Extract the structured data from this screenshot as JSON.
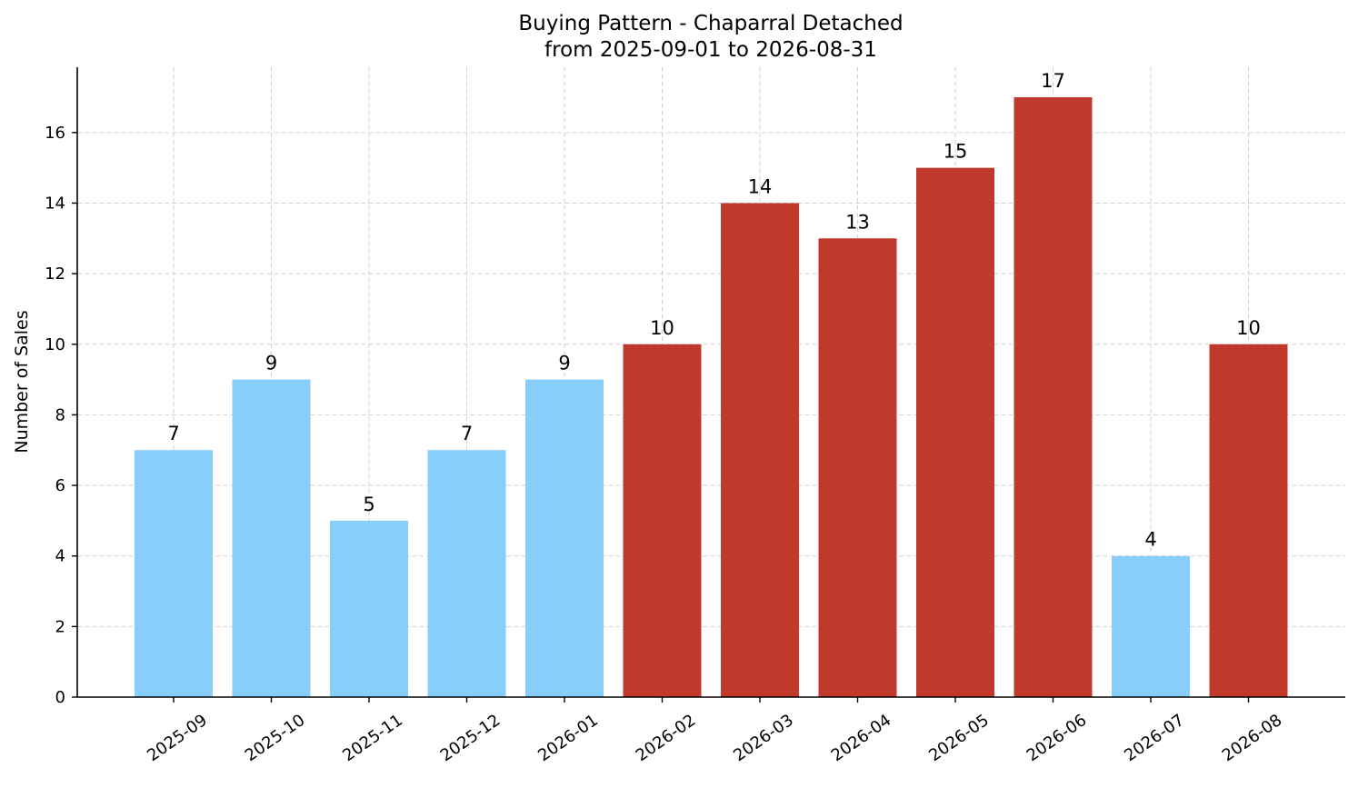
{
  "chart_data": {
    "type": "bar",
    "title": "Buying Pattern - Chaparral Detached",
    "subtitle": "from 2025-09-01 to 2026-08-31",
    "xlabel": "",
    "ylabel": "Number of Sales",
    "categories": [
      "2025-09",
      "2025-10",
      "2025-11",
      "2025-12",
      "2026-01",
      "2026-02",
      "2026-03",
      "2026-04",
      "2026-05",
      "2026-06",
      "2026-07",
      "2026-08"
    ],
    "values": [
      7,
      9,
      5,
      7,
      9,
      10,
      14,
      13,
      15,
      17,
      4,
      10
    ],
    "ylim": [
      0,
      17.85
    ],
    "yticks": [
      0,
      2,
      4,
      6,
      8,
      10,
      12,
      14,
      16
    ],
    "grid": true,
    "colors": {
      "low": "#87CEFA",
      "high": "#C0392B"
    },
    "bar_highlight": [
      false,
      false,
      false,
      false,
      false,
      true,
      true,
      true,
      true,
      true,
      false,
      true
    ]
  }
}
